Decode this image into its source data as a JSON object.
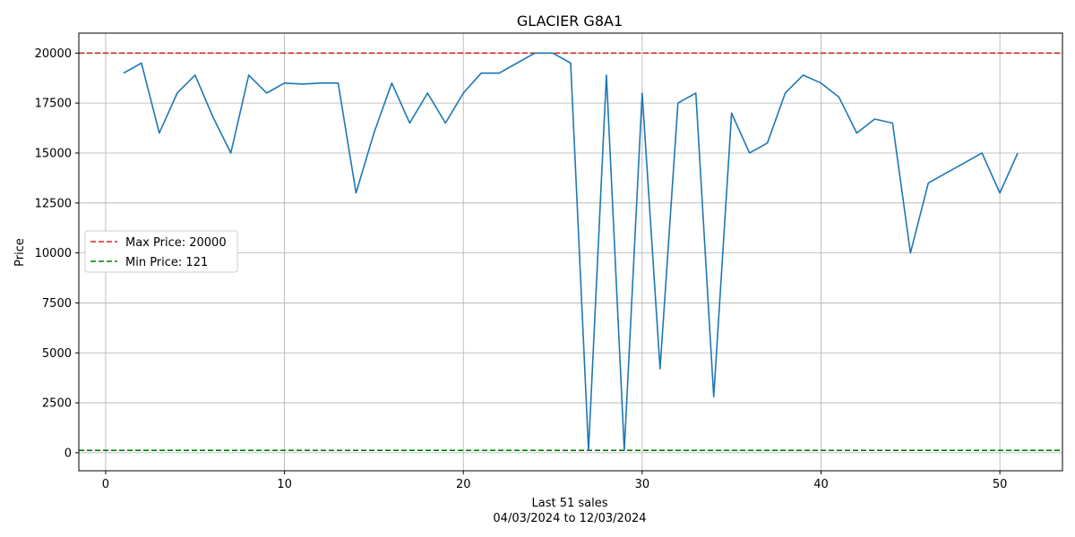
{
  "chart_data": {
    "type": "line",
    "title": "GLACIER G8A1",
    "xlabel": "Last 51 sales",
    "xlabel_sub": "04/03/2024 to 12/03/2024",
    "ylabel": "Price",
    "xlim": [
      -1.5,
      53.5
    ],
    "ylim": [
      -900,
      21000
    ],
    "x_ticks": [
      0,
      10,
      20,
      30,
      40,
      50
    ],
    "y_ticks": [
      0,
      2500,
      5000,
      7500,
      10000,
      12500,
      15000,
      17500,
      20000
    ],
    "grid": true,
    "legend_position": "center-left",
    "series": [
      {
        "color": "#1f77b4",
        "x": [
          1,
          2,
          3,
          4,
          5,
          6,
          7,
          8,
          9,
          10,
          11,
          12,
          13,
          14,
          15,
          16,
          17,
          18,
          19,
          20,
          21,
          22,
          23,
          24,
          25,
          26,
          27,
          28,
          29,
          30,
          31,
          32,
          33,
          34,
          35,
          36,
          37,
          38,
          39,
          40,
          41,
          42,
          43,
          44,
          45,
          46,
          47,
          48,
          49,
          50,
          51
        ],
        "values": [
          19000,
          19500,
          16000,
          18000,
          18900,
          16800,
          15000,
          18900,
          18000,
          18500,
          18450,
          18500,
          18500,
          13000,
          16000,
          18500,
          16500,
          18000,
          16500,
          18000,
          19000,
          19000,
          19500,
          20000,
          20000,
          19500,
          121,
          18900,
          121,
          18000,
          4200,
          17500,
          18000,
          2800,
          17000,
          15000,
          15500,
          18000,
          18900,
          18500,
          17800,
          16000,
          16700,
          16500,
          10000,
          13500,
          14000,
          14500,
          15000,
          13000,
          15000
        ]
      }
    ],
    "reference_lines": [
      {
        "name": "Max Price: 20000",
        "value": 20000,
        "color": "#d62728",
        "dash": "dashed"
      },
      {
        "name": "Min Price: 121",
        "value": 121,
        "color": "#008000",
        "dash": "dashed"
      }
    ]
  }
}
